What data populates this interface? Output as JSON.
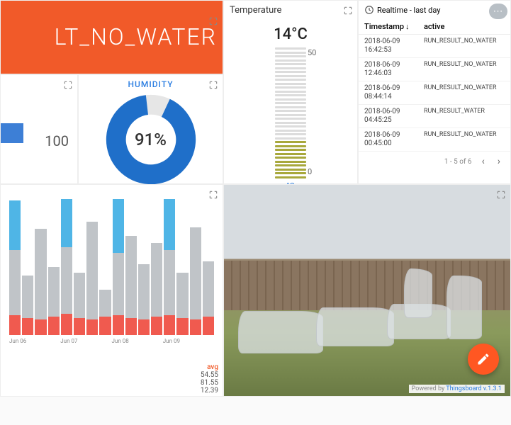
{
  "banner": {
    "text": "LT_NO_WATER",
    "bg": "#f15a29",
    "fg": "#ffffff"
  },
  "mini": {
    "value": "100",
    "bar_fill": "#3d7fd6",
    "bar_pct": 30
  },
  "humidity": {
    "title": "HUMIDITY",
    "value": "91%",
    "pct": 91,
    "ring_color": "#1f6fc9",
    "empty_color": "#e6e6e6"
  },
  "temperature": {
    "title": "Temperature",
    "value": "14°C",
    "unit": "°C",
    "max_label": "50",
    "min_label": "0",
    "ticks_total": 34,
    "ticks_on": 10,
    "on_color": "#a8a83c",
    "off_color": "#dcdcdc"
  },
  "realtime": {
    "title": "Realtime - last day",
    "col1": "Timestamp",
    "col2": "active",
    "rows": [
      {
        "ts": "2018-06-09\n16:42:53",
        "val": "RUN_RESULT_NO_WATER"
      },
      {
        "ts": "2018-06-09\n12:46:03",
        "val": "RUN_RESULT_NO_WATER"
      },
      {
        "ts": "2018-06-09\n08:44:14",
        "val": "RUN_RESULT_NO_WATER"
      },
      {
        "ts": "2018-06-09\n04:45:25",
        "val": "RUN_RESULT_WATER"
      },
      {
        "ts": "2018-06-09\n00:45:00",
        "val": "RUN_RESULT_NO_WATER"
      }
    ],
    "pager": "1 - 5 of 6"
  },
  "chart": {
    "type": "grouped-bar",
    "x_labels": [
      "Jun 06",
      "Jun 07",
      "Jun 08",
      "Jun 09"
    ],
    "series_colors": {
      "blue": "#4fb5e6",
      "gray": "#c0c4c8",
      "red": "#f05a4f"
    },
    "groups": [
      [
        {
          "b": 95,
          "g": 60,
          "r": 14
        },
        {
          "b": 20,
          "g": 42,
          "r": 12
        },
        {
          "b": 22,
          "g": 75,
          "r": 11
        },
        {
          "b": 18,
          "g": 48,
          "r": 13
        }
      ],
      [
        {
          "b": 96,
          "g": 62,
          "r": 15
        },
        {
          "b": 20,
          "g": 44,
          "r": 12
        },
        {
          "b": 22,
          "g": 80,
          "r": 11
        },
        {
          "b": 18,
          "g": 32,
          "r": 13
        }
      ],
      [
        {
          "b": 96,
          "g": 58,
          "r": 14
        },
        {
          "b": 20,
          "g": 70,
          "r": 12
        },
        {
          "b": 22,
          "g": 50,
          "r": 11
        },
        {
          "b": 18,
          "g": 65,
          "r": 13
        }
      ],
      [
        {
          "b": 96,
          "g": 60,
          "r": 14
        },
        {
          "b": 20,
          "g": 44,
          "r": 12
        },
        {
          "b": 22,
          "g": 76,
          "r": 11
        },
        {
          "b": 40,
          "g": 52,
          "r": 13
        }
      ]
    ],
    "avg_label": "avg",
    "avg": [
      "54.55",
      "81.55",
      "12.39"
    ]
  },
  "footer": {
    "prefix": "Powered by ",
    "link": "Thingsboard v.1.3.1"
  }
}
